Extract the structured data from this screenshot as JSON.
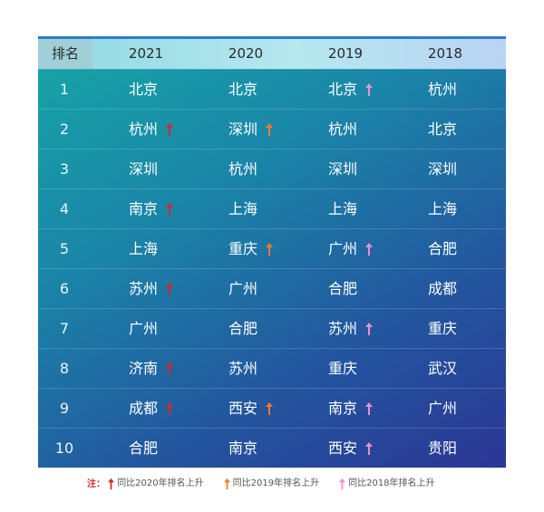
{
  "header": {
    "rank": "排名",
    "years": [
      "2021",
      "2020",
      "2019",
      "2018"
    ]
  },
  "colors": {
    "arrow_2020": "#d02a2a",
    "arrow_2019": "#f07a2a",
    "arrow_2018": "#ec8ed4"
  },
  "rows": [
    {
      "rank": "1",
      "cells": [
        {
          "text": "北京",
          "arrow": ""
        },
        {
          "text": "北京",
          "arrow": ""
        },
        {
          "text": "北京",
          "arrow": "2018"
        },
        {
          "text": "杭州",
          "arrow": ""
        }
      ]
    },
    {
      "rank": "2",
      "cells": [
        {
          "text": "杭州",
          "arrow": "2020"
        },
        {
          "text": "深圳",
          "arrow": "2019"
        },
        {
          "text": "杭州",
          "arrow": ""
        },
        {
          "text": "北京",
          "arrow": ""
        }
      ]
    },
    {
      "rank": "3",
      "cells": [
        {
          "text": "深圳",
          "arrow": ""
        },
        {
          "text": "杭州",
          "arrow": ""
        },
        {
          "text": "深圳",
          "arrow": ""
        },
        {
          "text": "深圳",
          "arrow": ""
        }
      ]
    },
    {
      "rank": "4",
      "cells": [
        {
          "text": "南京",
          "arrow": "2020"
        },
        {
          "text": "上海",
          "arrow": ""
        },
        {
          "text": "上海",
          "arrow": ""
        },
        {
          "text": "上海",
          "arrow": ""
        }
      ]
    },
    {
      "rank": "5",
      "cells": [
        {
          "text": "上海",
          "arrow": ""
        },
        {
          "text": "重庆",
          "arrow": "2019"
        },
        {
          "text": "广州",
          "arrow": "2018"
        },
        {
          "text": "合肥",
          "arrow": ""
        }
      ]
    },
    {
      "rank": "6",
      "cells": [
        {
          "text": "苏州",
          "arrow": "2020"
        },
        {
          "text": "广州",
          "arrow": ""
        },
        {
          "text": "合肥",
          "arrow": ""
        },
        {
          "text": "成都",
          "arrow": ""
        }
      ]
    },
    {
      "rank": "7",
      "cells": [
        {
          "text": "广州",
          "arrow": ""
        },
        {
          "text": "合肥",
          "arrow": ""
        },
        {
          "text": "苏州",
          "arrow": "2018"
        },
        {
          "text": "重庆",
          "arrow": ""
        }
      ]
    },
    {
      "rank": "8",
      "cells": [
        {
          "text": "济南",
          "arrow": "2020"
        },
        {
          "text": "苏州",
          "arrow": ""
        },
        {
          "text": "重庆",
          "arrow": ""
        },
        {
          "text": "武汉",
          "arrow": ""
        }
      ]
    },
    {
      "rank": "9",
      "cells": [
        {
          "text": "成都",
          "arrow": "2020"
        },
        {
          "text": "西安",
          "arrow": "2019"
        },
        {
          "text": "南京",
          "arrow": "2018"
        },
        {
          "text": "广州",
          "arrow": ""
        }
      ]
    },
    {
      "rank": "10",
      "cells": [
        {
          "text": "合肥",
          "arrow": ""
        },
        {
          "text": "南京",
          "arrow": ""
        },
        {
          "text": "西安",
          "arrow": "2018"
        },
        {
          "text": "贵阳",
          "arrow": ""
        }
      ]
    }
  ],
  "legend": {
    "prefix": "注：",
    "items": [
      {
        "key": "2020",
        "label": "同比2020年排名上升"
      },
      {
        "key": "2019",
        "label": "同比2019年排名上升"
      },
      {
        "key": "2018",
        "label": "同比2018年排名上升"
      }
    ]
  }
}
